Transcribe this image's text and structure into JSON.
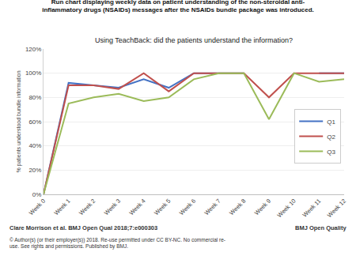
{
  "chart_data": {
    "type": "line",
    "title": "Run chart displaying weekly data on patient understanding of the non-steroidal anti-\ninflammatory drugs (NSAIDs) messages after the NSAIDs bundle package was introduced.",
    "subtitle": "Using TeachBack: did the patients understand the information?",
    "ylabel": "% patients understood bundle information",
    "annotations": [
      "Clare Morrison et al. BMJ Open Qual 2018;7:e000303",
      "© Author(s) (or their employer(s)) 2018. Re-use permitted under CC BY-NC. No commercial re-\nuse. See rights and permissions. Published by BMJ.",
      "BMJ Open Quality"
    ],
    "categories": [
      "Week 0",
      "Week 1",
      "Week 2",
      "Week 3",
      "Week 4",
      "Week 5",
      "Week 6",
      "Week 7",
      "Week 8",
      "Week 9",
      "Week 10",
      "Week 11",
      "Week 12"
    ],
    "series": [
      {
        "name": "Q1",
        "color": "#4472c4",
        "values": [
          0,
          92,
          90,
          88,
          95,
          88,
          100,
          100,
          100,
          null,
          null,
          100,
          100
        ]
      },
      {
        "name": "Q2",
        "color": "#c0504d",
        "values": [
          0,
          90,
          90,
          87,
          100,
          85,
          100,
          100,
          100,
          80,
          100,
          100,
          100
        ]
      },
      {
        "name": "Q3",
        "color": "#9bbb59",
        "values": [
          0,
          75,
          80,
          83,
          77,
          80,
          95,
          100,
          100,
          62,
          100,
          93,
          95
        ]
      }
    ],
    "ylim": [
      0,
      120
    ],
    "yticks": [
      {
        "value": 0,
        "label": "0%"
      },
      {
        "value": 20,
        "label": "20%"
      },
      {
        "value": 40,
        "label": "40%"
      },
      {
        "value": 60,
        "label": "60%"
      },
      {
        "value": 80,
        "label": "80%"
      },
      {
        "value": 100,
        "label": "100%"
      },
      {
        "value": 120,
        "label": "120%"
      }
    ],
    "grid": "y",
    "legend": "right"
  }
}
